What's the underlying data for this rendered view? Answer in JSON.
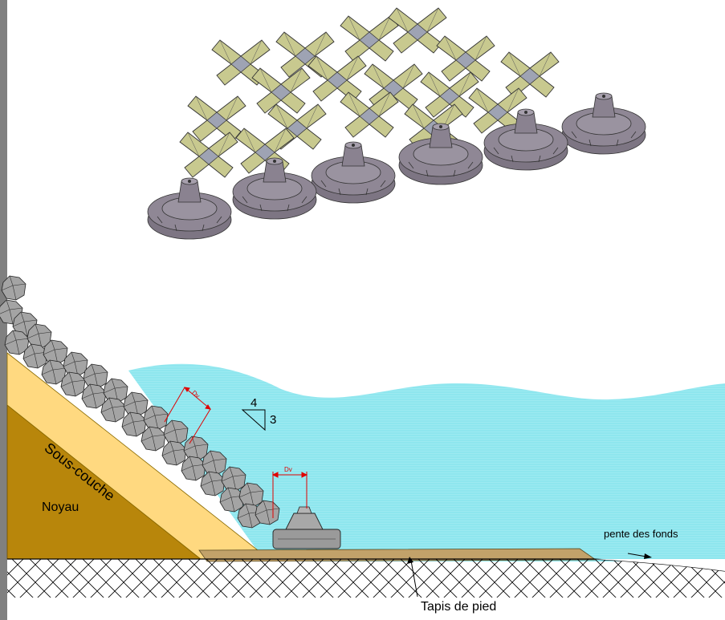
{
  "labels": {
    "sous_couche": "Sous-couche",
    "noyau": "Noyau",
    "slope_h": "4",
    "slope_v": "3",
    "dv_upper": "Dv",
    "dv_lower": "Dv",
    "pente": "pente des fonds",
    "tapis": "Tapis de pied"
  },
  "colors": {
    "water": "#8ee6ee",
    "sous_couche": "#ffd980",
    "noyau": "#b8860b",
    "tapis": "#c2a26a",
    "armour_block": "#9a9a9a",
    "perspective_block_top": "#c8c98f",
    "perspective_block_base": "#8f8795",
    "dimension_red": "#e00000",
    "left_border": "#808080"
  },
  "icons": {
    "armour_unit_3d": "tetrapod-on-disc",
    "slope_marker": "triangle"
  }
}
